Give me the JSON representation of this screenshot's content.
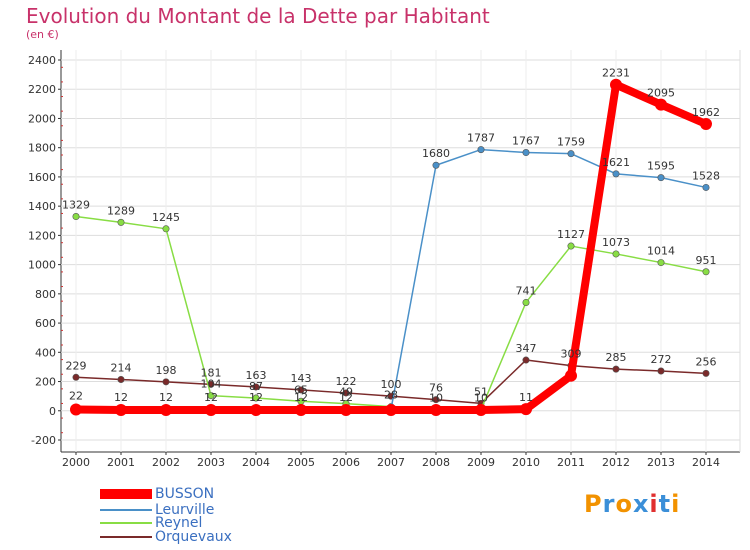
{
  "header": {
    "title": "Evolution du Montant de la Dette par Habitant",
    "unit": "(en €)"
  },
  "logo": {
    "text": "Proxiti",
    "colors": [
      "#f29200",
      "#3b8fd8",
      "#f29200",
      "#3b8fd8",
      "#e03030",
      "#3b8fd8",
      "#f29200"
    ]
  },
  "chart_data": {
    "type": "line",
    "title": "Evolution du Montant de la Dette par Habitant",
    "subtitle": "(en €)",
    "xlabel": "",
    "ylabel": "",
    "categories": [
      "2000",
      "2001",
      "2002",
      "2003",
      "2004",
      "2005",
      "2006",
      "2007",
      "2008",
      "2009",
      "2010",
      "2011",
      "2012",
      "2013",
      "2014"
    ],
    "yticks": [
      -200,
      0,
      200,
      400,
      600,
      800,
      1000,
      1200,
      1400,
      1600,
      1800,
      2000,
      2200,
      2400
    ],
    "ylim": [
      -200,
      2400
    ],
    "grid": true,
    "legend_position": "bottom-left",
    "series": [
      {
        "name": "BUSSON",
        "color": "#ff0000",
        "values": [
          9,
          5,
          5,
          5,
          5,
          5,
          5,
          5,
          5,
          5,
          11,
          240,
          2231,
          2095,
          1962
        ],
        "labels": [
          null,
          null,
          null,
          null,
          null,
          null,
          null,
          null,
          null,
          null,
          "11",
          null,
          "2231",
          "2095",
          "1962"
        ]
      },
      {
        "name": "Leurville",
        "color": "#4a90c8",
        "values": [
          22,
          12,
          12,
          12,
          12,
          12,
          12,
          10,
          1680,
          1787,
          1767,
          1759,
          1621,
          1595,
          1528
        ],
        "labels": [
          "22",
          "12",
          "12",
          "12",
          "12",
          "12",
          "12",
          null,
          "1680",
          "1787",
          "1767",
          "1759",
          "1621",
          "1595",
          "1528"
        ]
      },
      {
        "name": "Reynel",
        "color": "#88dd44",
        "values": [
          1329,
          1289,
          1245,
          104,
          87,
          65,
          49,
          28,
          10,
          10,
          741,
          1127,
          1073,
          1014,
          951
        ],
        "labels": [
          "1329",
          "1289",
          "1245",
          "104",
          "87",
          "65",
          "49",
          "28",
          "10",
          "10",
          "741",
          "1127",
          "1073",
          "1014",
          "951"
        ]
      },
      {
        "name": "Orquevaux",
        "color": "#7a2a2a",
        "values": [
          229,
          214,
          198,
          181,
          163,
          143,
          122,
          100,
          76,
          51,
          347,
          309,
          285,
          272,
          256
        ],
        "labels": [
          "229",
          "214",
          "198",
          "181",
          "163",
          "143",
          "122",
          "100",
          "76",
          "51",
          "347",
          "309",
          "285",
          "272",
          "256"
        ]
      }
    ]
  }
}
